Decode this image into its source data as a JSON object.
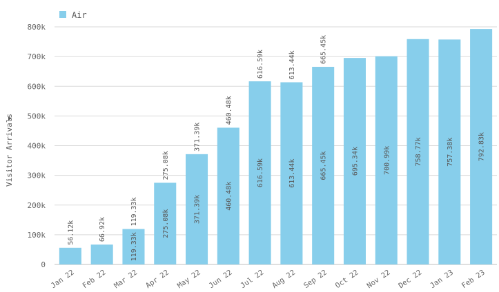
{
  "colors": {
    "bar": "#87ceeb",
    "grid": "#d9d9d9",
    "axis": "#bfbfbf"
  },
  "chart_data": {
    "type": "bar",
    "title": "",
    "xlabel": "",
    "ylabel": "Visitor Arrivals",
    "ylabel_marker": "▼",
    "ylim": [
      0,
      800000
    ],
    "y_ticks": [
      0,
      100000,
      200000,
      300000,
      400000,
      500000,
      600000,
      700000,
      800000
    ],
    "y_tick_labels": [
      "0",
      "100k",
      "200k",
      "300k",
      "400k",
      "500k",
      "600k",
      "700k",
      "800k"
    ],
    "grid": true,
    "legend": {
      "position": "top-left",
      "entries": [
        "Air"
      ]
    },
    "categories": [
      "Jan 22",
      "Feb 22",
      "Mar 22",
      "Apr 22",
      "May 22",
      "Jun 22",
      "Jul 22",
      "Aug 22",
      "Sep 22",
      "Oct 22",
      "Nov 22",
      "Dec 22",
      "Jan 23",
      "Feb 23"
    ],
    "series": [
      {
        "name": "Air",
        "values": [
          56120,
          66920,
          119330,
          275080,
          371390,
          460480,
          616590,
          613440,
          665450,
          695340,
          700990,
          758770,
          757380,
          792830
        ],
        "labels": [
          "56.12k",
          "66.92k",
          "119.33k",
          "275.08k",
          "371.39k",
          "460.48k",
          "616.59k",
          "613.44k",
          "665.45k",
          "695.34k",
          "700.99k",
          "758.77k",
          "757.38k",
          "792.83k"
        ],
        "outside_labels": [
          true,
          true,
          true,
          true,
          true,
          true,
          true,
          true,
          true,
          false,
          false,
          false,
          false,
          false
        ],
        "inside_labels": [
          false,
          false,
          true,
          true,
          true,
          true,
          true,
          true,
          true,
          true,
          true,
          true,
          true,
          true
        ]
      }
    ]
  }
}
